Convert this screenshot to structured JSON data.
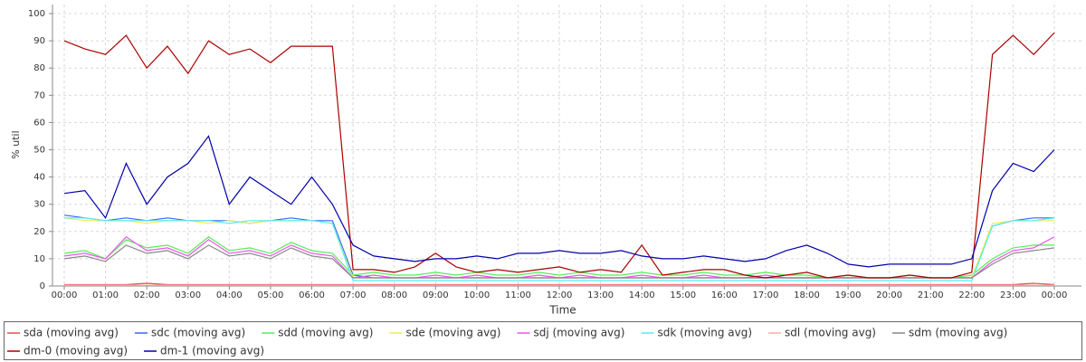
{
  "chart_data": {
    "type": "line",
    "x_label": "Time",
    "y_label": "% util",
    "x": [
      0,
      0.5,
      1,
      1.5,
      2,
      2.5,
      3,
      3.5,
      4,
      4.5,
      5,
      5.5,
      6,
      6.5,
      7,
      7.5,
      8,
      8.5,
      9,
      9.5,
      10,
      10.5,
      11,
      11.5,
      12,
      12.5,
      13,
      13.5,
      14,
      14.5,
      15,
      15.5,
      16,
      16.5,
      17,
      17.5,
      18,
      18.5,
      19,
      19.5,
      20,
      20.5,
      21,
      21.5,
      22,
      22.5,
      23,
      23.5,
      24
    ],
    "xlim": [
      0,
      24
    ],
    "xticks": [
      {
        "value": 0,
        "label": "00:00"
      },
      {
        "value": 1,
        "label": "01:00"
      },
      {
        "value": 2,
        "label": "02:00"
      },
      {
        "value": 3,
        "label": "03:00"
      },
      {
        "value": 4,
        "label": "04:00"
      },
      {
        "value": 5,
        "label": "05:00"
      },
      {
        "value": 6,
        "label": "06:00"
      },
      {
        "value": 7,
        "label": "07:00"
      },
      {
        "value": 8,
        "label": "08:00"
      },
      {
        "value": 9,
        "label": "09:00"
      },
      {
        "value": 10,
        "label": "10:00"
      },
      {
        "value": 11,
        "label": "11:00"
      },
      {
        "value": 12,
        "label": "12:00"
      },
      {
        "value": 13,
        "label": "13:00"
      },
      {
        "value": 14,
        "label": "14:00"
      },
      {
        "value": 15,
        "label": "15:00"
      },
      {
        "value": 16,
        "label": "16:00"
      },
      {
        "value": 17,
        "label": "17:00"
      },
      {
        "value": 18,
        "label": "18:00"
      },
      {
        "value": 19,
        "label": "19:00"
      },
      {
        "value": 20,
        "label": "20:00"
      },
      {
        "value": 21,
        "label": "21:00"
      },
      {
        "value": 22,
        "label": "22:00"
      },
      {
        "value": 23,
        "label": "23:00"
      },
      {
        "value": 24,
        "label": "00:00"
      }
    ],
    "ylim": [
      0,
      100
    ],
    "yticks": [
      0,
      10,
      20,
      30,
      40,
      50,
      60,
      70,
      80,
      90,
      100
    ],
    "grid": true,
    "legend": "bottom",
    "series": [
      {
        "name": "sda (moving avg)",
        "color": "#e05050",
        "values": [
          0.5,
          0.5,
          0.5,
          0.5,
          1,
          0.5,
          0.5,
          0.5,
          0.5,
          0.5,
          0.5,
          0.5,
          0.5,
          0.5,
          0.5,
          0.5,
          0.5,
          0.5,
          0.5,
          0.5,
          0.5,
          0.5,
          0.5,
          0.5,
          0.5,
          0.5,
          0.5,
          0.5,
          0.5,
          0.5,
          0.5,
          0.5,
          0.5,
          0.5,
          0.5,
          0.5,
          0.5,
          0.5,
          0.5,
          0.5,
          0.5,
          0.5,
          0.5,
          0.5,
          0.5,
          0.5,
          0.5,
          1,
          0.5
        ]
      },
      {
        "name": "sdc (moving avg)",
        "color": "#3366ff",
        "values": [
          26,
          25,
          24,
          25,
          24,
          25,
          24,
          24,
          24,
          23,
          24,
          25,
          24,
          24,
          4,
          3,
          3,
          3,
          3,
          3,
          3,
          3,
          3,
          3,
          3,
          3,
          3,
          3,
          3,
          3,
          3,
          3,
          3,
          3,
          3,
          3,
          3,
          3,
          3,
          3,
          3,
          3,
          3,
          3,
          3,
          22,
          24,
          25,
          25
        ]
      },
      {
        "name": "sdd (moving avg)",
        "color": "#55ee55",
        "values": [
          12,
          13,
          10,
          17,
          14,
          15,
          12,
          18,
          13,
          14,
          12,
          16,
          13,
          12,
          4,
          5,
          4,
          4,
          5,
          4,
          5,
          4,
          4,
          5,
          4,
          5,
          4,
          4,
          5,
          4,
          4,
          5,
          4,
          4,
          5,
          4,
          4,
          3,
          4,
          3,
          3,
          4,
          3,
          3,
          4,
          10,
          14,
          15,
          15
        ]
      },
      {
        "name": "sde (moving avg)",
        "color": "#eeee55",
        "values": [
          25,
          24,
          24,
          24,
          23,
          24,
          24,
          23,
          24,
          23,
          24,
          24,
          24,
          23,
          3,
          3,
          3,
          3,
          3,
          3,
          3,
          3,
          3,
          3,
          3,
          3,
          3,
          3,
          3,
          3,
          3,
          3,
          3,
          3,
          3,
          3,
          3,
          3,
          3,
          3,
          3,
          3,
          3,
          3,
          3,
          23,
          24,
          24,
          24
        ]
      },
      {
        "name": "sdj (moving avg)",
        "color": "#ee55ee",
        "values": [
          11,
          12,
          10,
          18,
          13,
          14,
          11,
          17,
          12,
          13,
          11,
          15,
          12,
          11,
          3,
          4,
          3,
          3,
          4,
          3,
          4,
          3,
          3,
          4,
          3,
          4,
          3,
          3,
          4,
          3,
          3,
          4,
          3,
          3,
          4,
          3,
          3,
          3,
          3,
          3,
          3,
          3,
          3,
          3,
          3,
          9,
          13,
          14,
          18
        ]
      },
      {
        "name": "sdk (moving avg)",
        "color": "#55eeee",
        "values": [
          25,
          25,
          24,
          24,
          24,
          24,
          24,
          24,
          23,
          24,
          24,
          24,
          24,
          23,
          2,
          2,
          2,
          2,
          2,
          2,
          2,
          2,
          2,
          2,
          2,
          2,
          2,
          2,
          2,
          2,
          2,
          2,
          2,
          2,
          2,
          2,
          2,
          2,
          2,
          2,
          2,
          2,
          2,
          2,
          2,
          22,
          24,
          24,
          25
        ]
      },
      {
        "name": "sdl (moving avg)",
        "color": "#ffaaaa",
        "values": [
          0.3,
          0.3,
          0.3,
          0.3,
          0.3,
          0.3,
          0.3,
          0.3,
          0.3,
          0.3,
          0.3,
          0.3,
          0.3,
          0.3,
          0.3,
          0.3,
          0.3,
          0.3,
          0.3,
          0.3,
          0.3,
          0.3,
          0.3,
          0.3,
          0.3,
          0.3,
          0.3,
          0.3,
          0.3,
          0.3,
          0.3,
          0.3,
          0.3,
          0.3,
          0.3,
          0.3,
          0.3,
          0.3,
          0.3,
          0.3,
          0.3,
          0.3,
          0.3,
          0.3,
          0.3,
          0.3,
          0.3,
          0.3,
          0.3
        ]
      },
      {
        "name": "sdm (moving avg)",
        "color": "#888888",
        "values": [
          10,
          11,
          9,
          15,
          12,
          13,
          10,
          15,
          11,
          12,
          10,
          14,
          11,
          10,
          3,
          3,
          3,
          3,
          3,
          3,
          3,
          3,
          3,
          3,
          3,
          3,
          3,
          3,
          3,
          3,
          3,
          3,
          3,
          3,
          3,
          3,
          3,
          3,
          3,
          3,
          3,
          3,
          3,
          3,
          3,
          8,
          12,
          13,
          14
        ]
      },
      {
        "name": "dm-0 (moving avg)",
        "color": "#aa0000",
        "values": [
          90,
          87,
          85,
          92,
          80,
          88,
          78,
          90,
          85,
          87,
          82,
          88,
          88,
          88,
          6,
          6,
          5,
          7,
          12,
          7,
          5,
          6,
          5,
          6,
          7,
          5,
          6,
          5,
          15,
          4,
          5,
          6,
          6,
          4,
          3,
          4,
          5,
          3,
          4,
          3,
          3,
          4,
          3,
          3,
          5,
          85,
          92,
          85,
          93
        ]
      },
      {
        "name": "dm-1 (moving avg)",
        "color": "#0000aa",
        "values": [
          34,
          35,
          25,
          45,
          30,
          40,
          45,
          55,
          30,
          40,
          35,
          30,
          40,
          30,
          15,
          11,
          10,
          9,
          10,
          10,
          11,
          10,
          12,
          12,
          13,
          12,
          12,
          13,
          11,
          10,
          10,
          11,
          10,
          9,
          10,
          13,
          15,
          12,
          8,
          7,
          8,
          8,
          8,
          8,
          10,
          35,
          45,
          42,
          50
        ]
      }
    ]
  }
}
